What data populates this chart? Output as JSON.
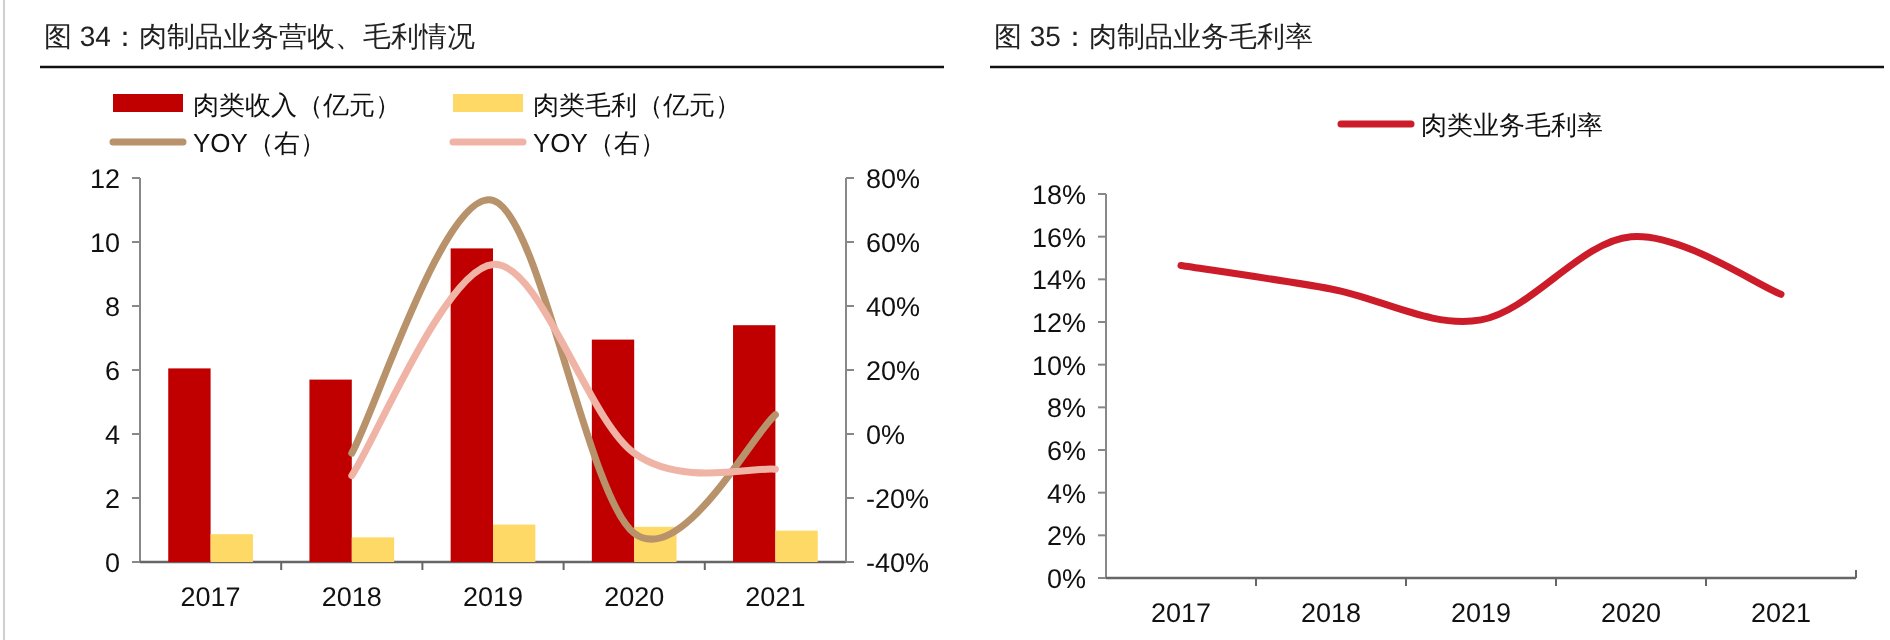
{
  "chart_data": [
    {
      "type": "bar",
      "title": "图 34：肉制品业务营收、毛利情况",
      "categories": [
        "2017",
        "2018",
        "2019",
        "2020",
        "2021"
      ],
      "series": [
        {
          "name": "肉类收入（亿元）",
          "color": "#c00000",
          "values": [
            6.05,
            5.7,
            9.8,
            6.95,
            7.4
          ]
        },
        {
          "name": "肉类毛利（亿元）",
          "color": "#ffd966",
          "values": [
            0.87,
            0.77,
            1.17,
            1.1,
            0.98
          ]
        },
        {
          "name": "YOY（右）",
          "type": "line",
          "axis": "y2",
          "color": "#b8926a",
          "values": [
            null,
            -6,
            73,
            -31,
            6
          ]
        },
        {
          "name": "YOY（右）",
          "type": "line",
          "axis": "y2",
          "color": "#f0b4a6",
          "values": [
            null,
            -13,
            53,
            -6,
            -11
          ]
        }
      ],
      "ylim": [
        0,
        12
      ],
      "yticks": [
        0,
        2,
        4,
        6,
        8,
        10,
        12
      ],
      "y2lim": [
        -40,
        80
      ],
      "y2ticks": [
        {
          "value": -40,
          "label": "-40%"
        },
        {
          "value": -20,
          "label": "-20%"
        },
        {
          "value": 0,
          "label": "0%"
        },
        {
          "value": 20,
          "label": "20%"
        },
        {
          "value": 40,
          "label": "40%"
        },
        {
          "value": 60,
          "label": "60%"
        },
        {
          "value": 80,
          "label": "80%"
        }
      ],
      "legend": "top"
    },
    {
      "type": "line",
      "title": "图 35：肉制品业务毛利率",
      "categories": [
        "2017",
        "2018",
        "2019",
        "2020",
        "2021"
      ],
      "series": [
        {
          "name": "肉类业务毛利率",
          "color": "#cc1c2a",
          "values": [
            14.65,
            13.55,
            12.1,
            16.0,
            13.3
          ]
        }
      ],
      "ylim": [
        0,
        18
      ],
      "yticks": [
        {
          "value": 0,
          "label": "0%"
        },
        {
          "value": 2,
          "label": "2%"
        },
        {
          "value": 4,
          "label": "4%"
        },
        {
          "value": 6,
          "label": "6%"
        },
        {
          "value": 8,
          "label": "8%"
        },
        {
          "value": 10,
          "label": "10%"
        },
        {
          "value": 12,
          "label": "12%"
        },
        {
          "value": 14,
          "label": "14%"
        },
        {
          "value": 16,
          "label": "16%"
        },
        {
          "value": 18,
          "label": "18%"
        }
      ],
      "legend": "top"
    }
  ]
}
